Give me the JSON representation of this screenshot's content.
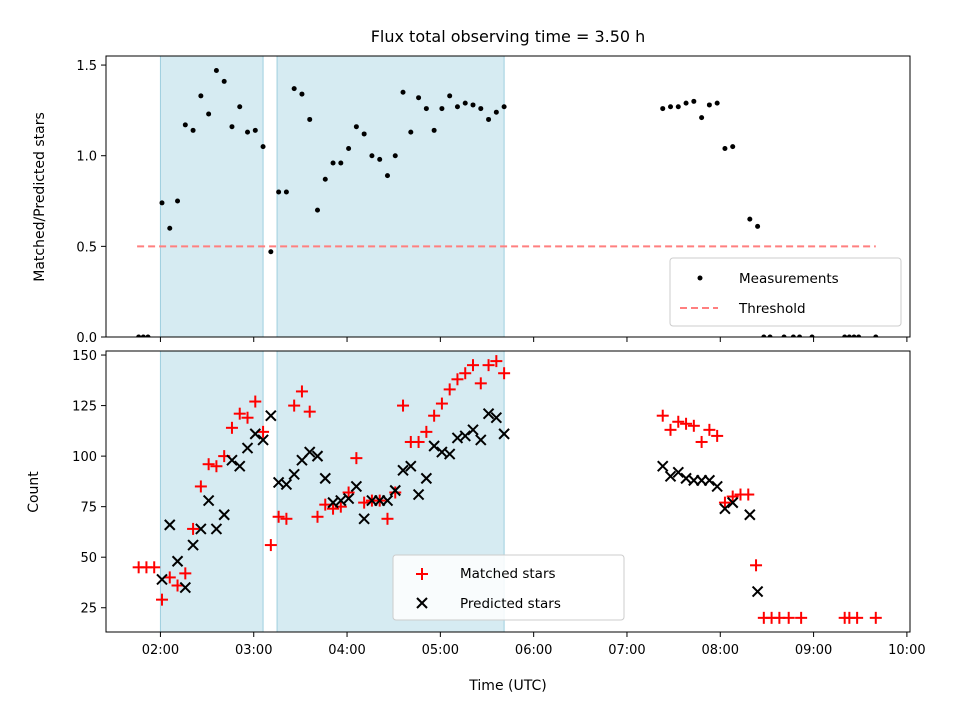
{
  "chart_data": [
    {
      "panel": "top",
      "type": "scatter",
      "title": "Flux total observing time = 3.50 h",
      "ylabel": "Matched/Predicted stars",
      "ylim": [
        0,
        1.55
      ],
      "yticks": [
        0.0,
        0.5,
        1.0,
        1.5
      ],
      "ytick_labels": [
        "0.0",
        "0.5",
        "1.0",
        "1.5"
      ],
      "xlim": [
        "01:25",
        "10:02"
      ],
      "xticks": [
        "02:00",
        "03:00",
        "04:00",
        "05:00",
        "06:00",
        "07:00",
        "08:00",
        "09:00",
        "10:00"
      ],
      "shaded_intervals": [
        [
          "02:00",
          "03:06"
        ],
        [
          "03:15",
          "05:41"
        ]
      ],
      "threshold": {
        "y": 0.5,
        "x_range": [
          "01:45",
          "09:40"
        ],
        "color": "#ff7f7f"
      },
      "legend": {
        "location": "lower right",
        "entries": [
          "Measurements",
          "Threshold"
        ]
      },
      "series": [
        {
          "name": "Measurements",
          "marker": "dot",
          "color": "#000000",
          "points": [
            [
              "01:46",
              0.0
            ],
            [
              "01:49",
              0.0
            ],
            [
              "01:52",
              0.0
            ],
            [
              "02:01",
              0.74
            ],
            [
              "02:06",
              0.6
            ],
            [
              "02:11",
              0.75
            ],
            [
              "02:16",
              1.17
            ],
            [
              "02:21",
              1.14
            ],
            [
              "02:26",
              1.33
            ],
            [
              "02:31",
              1.23
            ],
            [
              "02:36",
              1.47
            ],
            [
              "02:41",
              1.41
            ],
            [
              "02:46",
              1.16
            ],
            [
              "02:51",
              1.27
            ],
            [
              "02:56",
              1.13
            ],
            [
              "03:01",
              1.14
            ],
            [
              "03:06",
              1.05
            ],
            [
              "03:11",
              0.47
            ],
            [
              "03:16",
              0.8
            ],
            [
              "03:21",
              0.8
            ],
            [
              "03:26",
              1.37
            ],
            [
              "03:31",
              1.34
            ],
            [
              "03:36",
              1.2
            ],
            [
              "03:41",
              0.7
            ],
            [
              "03:46",
              0.87
            ],
            [
              "03:51",
              0.96
            ],
            [
              "03:56",
              0.96
            ],
            [
              "04:01",
              1.04
            ],
            [
              "04:06",
              1.16
            ],
            [
              "04:11",
              1.12
            ],
            [
              "04:16",
              1.0
            ],
            [
              "04:21",
              0.98
            ],
            [
              "04:26",
              0.89
            ],
            [
              "04:31",
              1.0
            ],
            [
              "04:36",
              1.35
            ],
            [
              "04:41",
              1.13
            ],
            [
              "04:46",
              1.32
            ],
            [
              "04:51",
              1.26
            ],
            [
              "04:56",
              1.14
            ],
            [
              "05:01",
              1.26
            ],
            [
              "05:06",
              1.33
            ],
            [
              "05:11",
              1.27
            ],
            [
              "05:16",
              1.29
            ],
            [
              "05:21",
              1.28
            ],
            [
              "05:26",
              1.26
            ],
            [
              "05:31",
              1.2
            ],
            [
              "05:36",
              1.24
            ],
            [
              "05:41",
              1.27
            ],
            [
              "07:23",
              1.26
            ],
            [
              "07:28",
              1.27
            ],
            [
              "07:33",
              1.27
            ],
            [
              "07:38",
              1.29
            ],
            [
              "07:43",
              1.3
            ],
            [
              "07:48",
              1.21
            ],
            [
              "07:53",
              1.28
            ],
            [
              "07:58",
              1.29
            ],
            [
              "08:03",
              1.04
            ],
            [
              "08:08",
              1.05
            ],
            [
              "08:19",
              0.65
            ],
            [
              "08:24",
              0.61
            ],
            [
              "08:28",
              0.0
            ],
            [
              "08:32",
              0.0
            ],
            [
              "08:41",
              0.0
            ],
            [
              "08:47",
              0.0
            ],
            [
              "08:51",
              0.0
            ],
            [
              "08:59",
              0.0
            ],
            [
              "09:20",
              0.0
            ],
            [
              "09:23",
              0.0
            ],
            [
              "09:26",
              0.0
            ],
            [
              "09:29",
              0.0
            ],
            [
              "09:40",
              0.0
            ]
          ]
        }
      ]
    },
    {
      "panel": "bottom",
      "type": "scatter",
      "xlabel": "Time (UTC)",
      "ylabel": "Count",
      "ylim": [
        13,
        152
      ],
      "yticks": [
        25,
        50,
        75,
        100,
        125,
        150
      ],
      "ytick_labels": [
        "25",
        "50",
        "75",
        "100",
        "125",
        "150"
      ],
      "xlim": [
        "01:25",
        "10:02"
      ],
      "xticks": [
        "02:00",
        "03:00",
        "04:00",
        "05:00",
        "06:00",
        "07:00",
        "08:00",
        "09:00",
        "10:00"
      ],
      "xtick_labels": [
        "02:00",
        "03:00",
        "04:00",
        "05:00",
        "06:00",
        "07:00",
        "08:00",
        "09:00",
        "10:00"
      ],
      "shaded_intervals": [
        [
          "02:00",
          "03:06"
        ],
        [
          "03:15",
          "05:41"
        ]
      ],
      "legend": {
        "location": "lower center",
        "entries": [
          "Matched stars",
          "Predicted stars"
        ]
      },
      "series": [
        {
          "name": "Matched stars",
          "marker": "plus",
          "color": "#ff0000",
          "points": [
            [
              "01:46",
              45
            ],
            [
              "01:51",
              45
            ],
            [
              "01:56",
              45
            ],
            [
              "02:01",
              29
            ],
            [
              "02:06",
              40
            ],
            [
              "02:11",
              36
            ],
            [
              "02:16",
              42
            ],
            [
              "02:21",
              64
            ],
            [
              "02:26",
              85
            ],
            [
              "02:31",
              96
            ],
            [
              "02:36",
              95
            ],
            [
              "02:41",
              100
            ],
            [
              "02:46",
              114
            ],
            [
              "02:51",
              121
            ],
            [
              "02:56",
              119
            ],
            [
              "03:01",
              127
            ],
            [
              "03:06",
              112
            ],
            [
              "03:11",
              56
            ],
            [
              "03:16",
              70
            ],
            [
              "03:21",
              69
            ],
            [
              "03:26",
              125
            ],
            [
              "03:31",
              132
            ],
            [
              "03:36",
              122
            ],
            [
              "03:41",
              70
            ],
            [
              "03:46",
              76
            ],
            [
              "03:51",
              74
            ],
            [
              "03:56",
              75
            ],
            [
              "04:01",
              82
            ],
            [
              "04:06",
              99
            ],
            [
              "04:11",
              77
            ],
            [
              "04:16",
              78
            ],
            [
              "04:21",
              78
            ],
            [
              "04:26",
              69
            ],
            [
              "04:31",
              82
            ],
            [
              "04:36",
              125
            ],
            [
              "04:41",
              107
            ],
            [
              "04:46",
              107
            ],
            [
              "04:51",
              112
            ],
            [
              "04:56",
              120
            ],
            [
              "05:01",
              126
            ],
            [
              "05:06",
              133
            ],
            [
              "05:11",
              138
            ],
            [
              "05:16",
              141
            ],
            [
              "05:21",
              145
            ],
            [
              "05:26",
              136
            ],
            [
              "05:31",
              145
            ],
            [
              "05:36",
              147
            ],
            [
              "05:41",
              141
            ],
            [
              "07:23",
              120
            ],
            [
              "07:28",
              113
            ],
            [
              "07:33",
              117
            ],
            [
              "07:38",
              116
            ],
            [
              "07:43",
              115
            ],
            [
              "07:48",
              107
            ],
            [
              "07:53",
              113
            ],
            [
              "07:58",
              110
            ],
            [
              "08:03",
              77
            ],
            [
              "08:08",
              80
            ],
            [
              "08:13",
              81
            ],
            [
              "08:18",
              81
            ],
            [
              "08:23",
              46
            ],
            [
              "08:28",
              20
            ],
            [
              "08:33",
              20
            ],
            [
              "08:38",
              20
            ],
            [
              "08:44",
              20
            ],
            [
              "08:52",
              20
            ],
            [
              "09:20",
              20
            ],
            [
              "09:23",
              20
            ],
            [
              "09:28",
              20
            ],
            [
              "09:40",
              20
            ]
          ]
        },
        {
          "name": "Predicted stars",
          "marker": "cross",
          "color": "#000000",
          "points": [
            [
              "02:01",
              39
            ],
            [
              "02:06",
              66
            ],
            [
              "02:11",
              48
            ],
            [
              "02:16",
              35
            ],
            [
              "02:21",
              56
            ],
            [
              "02:26",
              64
            ],
            [
              "02:31",
              78
            ],
            [
              "02:36",
              64
            ],
            [
              "02:41",
              71
            ],
            [
              "02:46",
              98
            ],
            [
              "02:51",
              95
            ],
            [
              "02:56",
              104
            ],
            [
              "03:01",
              111
            ],
            [
              "03:06",
              108
            ],
            [
              "03:11",
              120
            ],
            [
              "03:16",
              87
            ],
            [
              "03:21",
              86
            ],
            [
              "03:26",
              91
            ],
            [
              "03:31",
              98
            ],
            [
              "03:36",
              102
            ],
            [
              "03:41",
              100
            ],
            [
              "03:46",
              89
            ],
            [
              "03:51",
              77
            ],
            [
              "03:56",
              78
            ],
            [
              "04:01",
              79
            ],
            [
              "04:06",
              85
            ],
            [
              "04:11",
              69
            ],
            [
              "04:16",
              78
            ],
            [
              "04:21",
              78
            ],
            [
              "04:26",
              78
            ],
            [
              "04:31",
              83
            ],
            [
              "04:36",
              93
            ],
            [
              "04:41",
              95
            ],
            [
              "04:46",
              81
            ],
            [
              "04:51",
              89
            ],
            [
              "04:56",
              105
            ],
            [
              "05:01",
              102
            ],
            [
              "05:06",
              101
            ],
            [
              "05:11",
              109
            ],
            [
              "05:16",
              110
            ],
            [
              "05:21",
              113
            ],
            [
              "05:26",
              108
            ],
            [
              "05:31",
              121
            ],
            [
              "05:36",
              119
            ],
            [
              "05:41",
              111
            ],
            [
              "07:23",
              95
            ],
            [
              "07:28",
              90
            ],
            [
              "07:33",
              92
            ],
            [
              "07:38",
              89
            ],
            [
              "07:43",
              88
            ],
            [
              "07:48",
              88
            ],
            [
              "07:53",
              88
            ],
            [
              "07:58",
              85
            ],
            [
              "08:03",
              74
            ],
            [
              "08:08",
              77
            ],
            [
              "08:19",
              71
            ],
            [
              "08:24",
              33
            ]
          ]
        }
      ]
    }
  ]
}
